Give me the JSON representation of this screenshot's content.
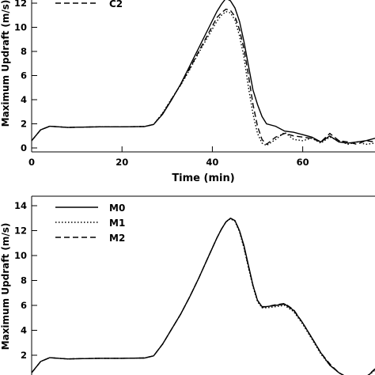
{
  "chart_data": [
    {
      "type": "line",
      "xlabel": "Time (min)",
      "ylabel": "Maximum Updraft (m/s)",
      "xlim": [
        0,
        76
      ],
      "ylim": [
        0,
        12.5
      ],
      "xticks": [
        0,
        20,
        40,
        60
      ],
      "yticks": [
        0,
        2,
        4,
        6,
        8,
        10,
        12
      ],
      "legend": "top-left",
      "series": [
        {
          "name": "",
          "style": "solid",
          "x": [
            0,
            2,
            4,
            6,
            8,
            10,
            15,
            20,
            25,
            27,
            29,
            31,
            33,
            35,
            37,
            39,
            41,
            42,
            43,
            44,
            45,
            46,
            47,
            48,
            49,
            50,
            51,
            52,
            54,
            56,
            58,
            60,
            62,
            64,
            66,
            68,
            70,
            72,
            74,
            76
          ],
          "y": [
            0.6,
            1.5,
            1.8,
            1.75,
            1.7,
            1.72,
            1.75,
            1.75,
            1.78,
            1.95,
            2.8,
            4.0,
            5.3,
            6.8,
            8.3,
            9.8,
            11.3,
            11.9,
            12.4,
            12.2,
            11.6,
            10.5,
            8.8,
            6.8,
            4.8,
            3.6,
            2.6,
            2.0,
            1.8,
            1.4,
            1.3,
            1.1,
            0.9,
            0.5,
            1.0,
            0.5,
            0.4,
            0.5,
            0.6,
            0.8
          ]
        },
        {
          "name": "",
          "style": "dotted",
          "x": [
            0,
            2,
            4,
            6,
            8,
            10,
            15,
            20,
            25,
            27,
            29,
            31,
            33,
            35,
            37,
            39,
            41,
            42,
            43,
            44,
            45,
            46,
            47,
            48,
            49,
            50,
            51,
            52,
            54,
            56,
            58,
            60,
            62,
            64,
            66,
            68,
            70,
            72,
            74,
            76
          ],
          "y": [
            0.6,
            1.5,
            1.8,
            1.75,
            1.7,
            1.72,
            1.75,
            1.75,
            1.78,
            1.95,
            2.9,
            4.1,
            5.2,
            6.5,
            7.9,
            9.2,
            10.5,
            11.0,
            11.3,
            11.2,
            10.6,
            9.3,
            7.5,
            5.0,
            2.8,
            1.2,
            0.4,
            0.2,
            0.7,
            1.3,
            0.7,
            0.6,
            0.8,
            0.4,
            0.9,
            0.6,
            0.3,
            0.5,
            0.3,
            0.4
          ]
        },
        {
          "name": "C2",
          "style": "dashed",
          "x": [
            0,
            2,
            4,
            6,
            8,
            10,
            15,
            20,
            25,
            27,
            29,
            31,
            33,
            35,
            37,
            39,
            41,
            42,
            43,
            44,
            45,
            46,
            47,
            48,
            49,
            50,
            51,
            52,
            54,
            56,
            58,
            60,
            62,
            64,
            66,
            68,
            70,
            72,
            74,
            76
          ],
          "y": [
            0.6,
            1.5,
            1.8,
            1.75,
            1.7,
            1.72,
            1.75,
            1.75,
            1.78,
            1.95,
            2.85,
            4.05,
            5.25,
            6.6,
            8.0,
            9.4,
            10.8,
            11.2,
            11.5,
            11.4,
            10.9,
            9.8,
            8.2,
            6.0,
            3.6,
            1.8,
            0.7,
            0.3,
            0.9,
            1.2,
            1.0,
            0.9,
            0.8,
            0.5,
            1.2,
            0.6,
            0.5,
            0.3,
            0.6,
            0.5
          ]
        }
      ]
    },
    {
      "type": "line",
      "xlabel": "",
      "ylabel": "Maximum Updraft (m/s)",
      "xlim": [
        0,
        76
      ],
      "ylim": [
        0,
        15
      ],
      "yticks": [
        2,
        4,
        6,
        8,
        10,
        12,
        14
      ],
      "legend": "top-left",
      "series": [
        {
          "name": "M0",
          "style": "solid",
          "x": [
            0,
            2,
            4,
            6,
            8,
            10,
            15,
            20,
            25,
            27,
            29,
            31,
            33,
            35,
            37,
            39,
            41,
            42,
            43,
            44,
            45,
            46,
            47,
            48,
            49,
            50,
            51,
            52,
            54,
            56,
            58,
            60,
            62,
            64,
            66,
            68,
            70,
            72,
            74,
            76
          ],
          "y": [
            0.6,
            1.5,
            1.8,
            1.75,
            1.7,
            1.72,
            1.75,
            1.75,
            1.78,
            1.95,
            2.9,
            4.1,
            5.3,
            6.7,
            8.2,
            9.8,
            11.4,
            12.1,
            12.7,
            13.0,
            12.8,
            12.0,
            10.8,
            9.2,
            7.6,
            6.4,
            5.9,
            5.9,
            6.0,
            6.1,
            5.6,
            4.6,
            3.4,
            2.2,
            1.2,
            0.6,
            0.2,
            0.1,
            0.2,
            0.9
          ]
        },
        {
          "name": "M1",
          "style": "dotted",
          "x": [
            0,
            2,
            4,
            6,
            8,
            10,
            15,
            20,
            25,
            27,
            29,
            31,
            33,
            35,
            37,
            39,
            41,
            42,
            43,
            44,
            45,
            46,
            47,
            48,
            49,
            50,
            51,
            52,
            54,
            56,
            58,
            60,
            62,
            64,
            66,
            68,
            70,
            72,
            74,
            76
          ],
          "y": [
            0.6,
            1.5,
            1.8,
            1.75,
            1.7,
            1.72,
            1.75,
            1.75,
            1.78,
            1.95,
            2.9,
            4.1,
            5.3,
            6.7,
            8.2,
            9.8,
            11.4,
            12.1,
            12.7,
            12.95,
            12.75,
            11.9,
            10.6,
            9.0,
            7.5,
            6.3,
            5.8,
            5.8,
            5.9,
            6.0,
            5.5,
            4.5,
            3.3,
            2.1,
            1.2,
            0.6,
            0.2,
            0.15,
            0.2,
            0.8
          ]
        },
        {
          "name": "M2",
          "style": "dashed",
          "x": [
            0,
            2,
            4,
            6,
            8,
            10,
            15,
            20,
            25,
            27,
            29,
            31,
            33,
            35,
            37,
            39,
            41,
            42,
            43,
            44,
            45,
            46,
            47,
            48,
            49,
            50,
            51,
            52,
            54,
            56,
            58,
            60,
            62,
            64,
            66,
            68,
            70,
            72,
            74,
            76
          ],
          "y": [
            0.6,
            1.5,
            1.8,
            1.75,
            1.7,
            1.72,
            1.75,
            1.75,
            1.78,
            1.95,
            2.9,
            4.1,
            5.3,
            6.7,
            8.2,
            9.8,
            11.4,
            12.1,
            12.7,
            13.0,
            12.8,
            12.0,
            10.7,
            9.1,
            7.6,
            6.4,
            5.85,
            5.9,
            6.05,
            6.15,
            5.65,
            4.6,
            3.4,
            2.2,
            1.3,
            0.6,
            0.2,
            0.1,
            0.25,
            0.9
          ]
        }
      ]
    }
  ]
}
